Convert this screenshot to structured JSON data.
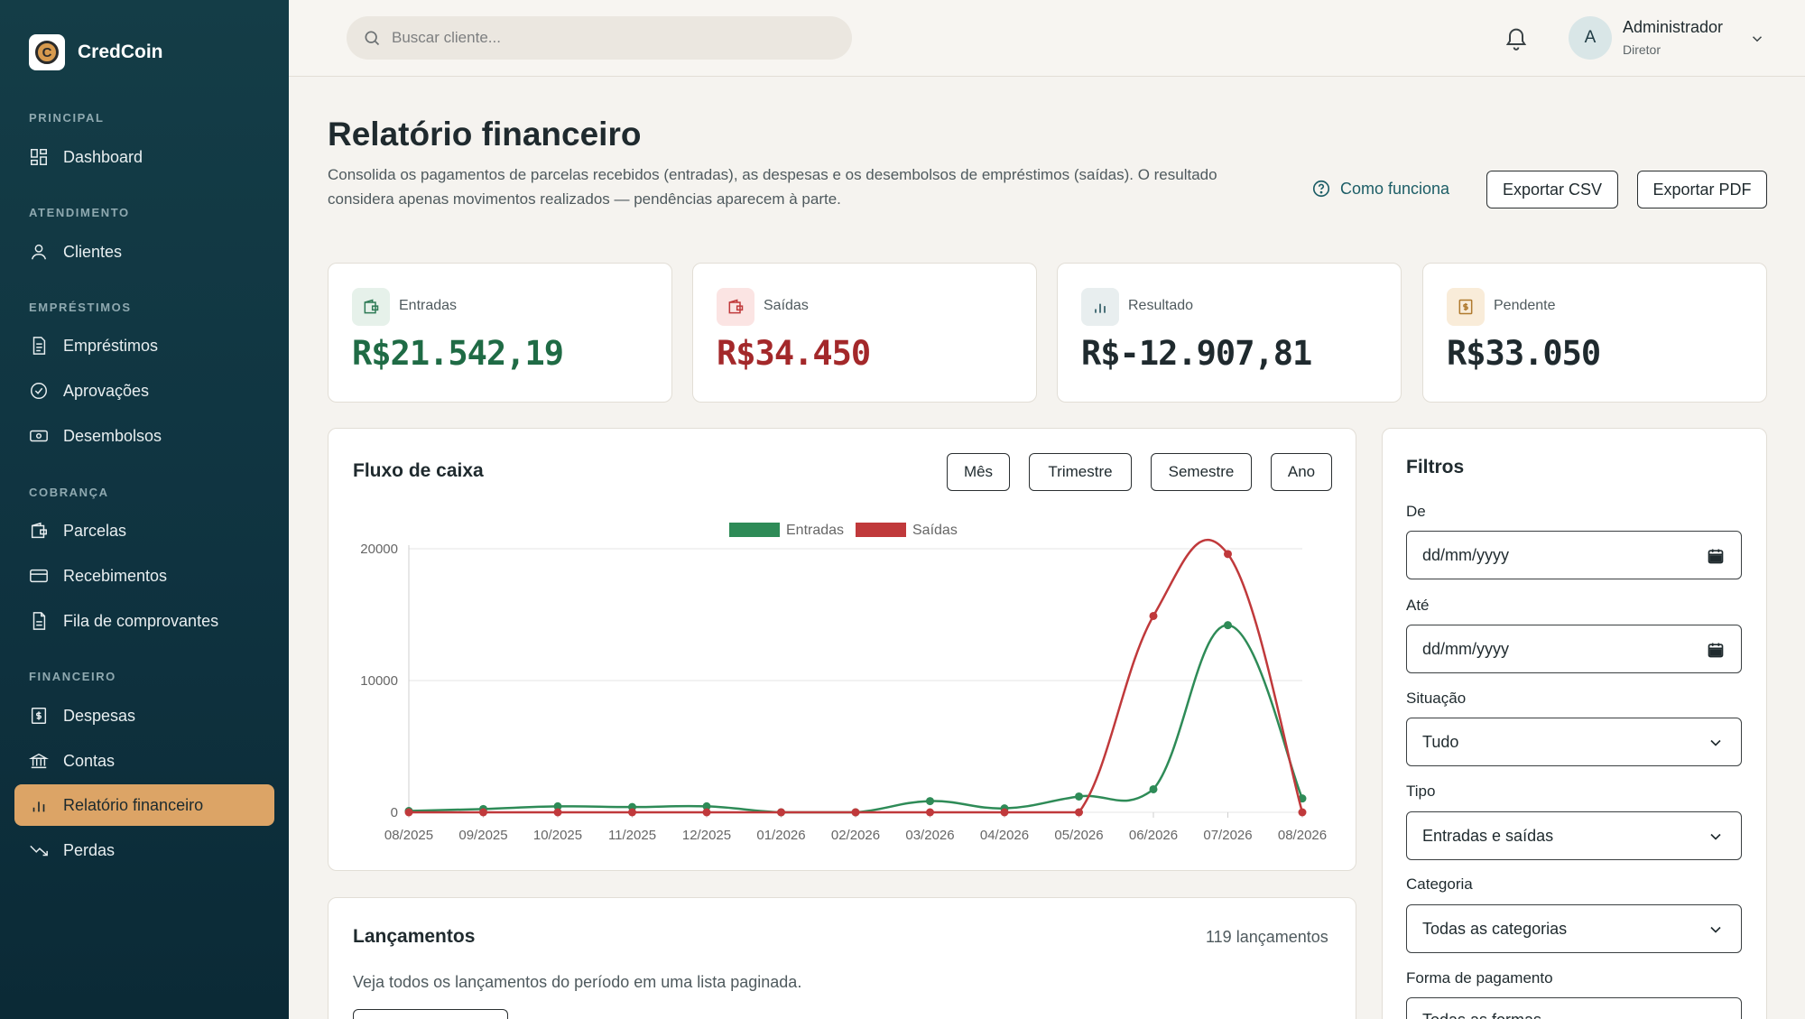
{
  "brand": {
    "name": "CredCoin",
    "logo_letter": "C"
  },
  "sidebar": {
    "sections": [
      {
        "label": "PRINCIPAL",
        "items": [
          {
            "label": "Dashboard",
            "icon": "grid-icon"
          }
        ]
      },
      {
        "label": "ATENDIMENTO",
        "items": [
          {
            "label": "Clientes",
            "icon": "user-icon"
          }
        ]
      },
      {
        "label": "EMPRÉSTIMOS",
        "items": [
          {
            "label": "Empréstimos",
            "icon": "document-icon"
          },
          {
            "label": "Aprovações",
            "icon": "check-circle-icon"
          },
          {
            "label": "Desembolsos",
            "icon": "banknote-icon"
          }
        ]
      },
      {
        "label": "COBRANÇA",
        "items": [
          {
            "label": "Parcelas",
            "icon": "wallet-icon"
          },
          {
            "label": "Recebimentos",
            "icon": "card-icon"
          },
          {
            "label": "Fila de comprovantes",
            "icon": "file-icon"
          }
        ]
      },
      {
        "label": "FINANCEIRO",
        "items": [
          {
            "label": "Despesas",
            "icon": "receipt-icon"
          },
          {
            "label": "Contas",
            "icon": "bank-icon"
          },
          {
            "label": "Relatório financeiro",
            "icon": "bar-chart-icon",
            "active": true
          },
          {
            "label": "Perdas",
            "icon": "trending-down-icon"
          }
        ]
      }
    ]
  },
  "topbar": {
    "search_placeholder": "Buscar cliente...",
    "user": {
      "initial": "A",
      "name": "Administrador",
      "role": "Diretor"
    }
  },
  "page": {
    "title": "Relatório financeiro",
    "description": "Consolida os pagamentos de parcelas recebidos (entradas), as despesas e os desembolsos de empréstimos (saídas). O resultado considera apenas movimentos realizados — pendências aparecem à parte.",
    "how_it_works": "Como funciona",
    "export_csv": "Exportar CSV",
    "export_pdf": "Exportar PDF"
  },
  "kpis": [
    {
      "label": "Entradas",
      "value": "R$21.542,19",
      "color": "#1f6b45",
      "icon": "wallet-icon",
      "icon_bg": "#e6f1ea",
      "icon_color": "#2d7a55"
    },
    {
      "label": "Saídas",
      "value": "R$34.450",
      "color": "#a3282a",
      "icon": "wallet-icon",
      "icon_bg": "#fbe4e3",
      "icon_color": "#c0393b"
    },
    {
      "label": "Resultado",
      "value": "R$-12.907,81",
      "color": "#1f2a2e",
      "icon": "bar-chart-icon",
      "icon_bg": "#e8eeef",
      "icon_color": "#2d5a63"
    },
    {
      "label": "Pendente",
      "value": "R$33.050",
      "color": "#1f2a2e",
      "icon": "receipt-icon",
      "icon_bg": "#f9ecd9",
      "icon_color": "#b07a2e"
    }
  ],
  "cashflow": {
    "title": "Fluxo de caixa",
    "periods": [
      "Mês",
      "Trimestre",
      "Semestre",
      "Ano"
    ]
  },
  "chart_data": {
    "type": "line",
    "title": "",
    "x": [
      "08/2025",
      "09/2025",
      "10/2025",
      "11/2025",
      "12/2025",
      "01/2026",
      "02/2026",
      "03/2026",
      "04/2026",
      "05/2026",
      "06/2026",
      "07/2026",
      "08/2026"
    ],
    "series": [
      {
        "name": "Entradas",
        "color": "#2e8b57",
        "values": [
          100,
          250,
          450,
          400,
          450,
          0,
          0,
          850,
          300,
          1200,
          1750,
          14200,
          1050
        ]
      },
      {
        "name": "Saídas",
        "color": "#c0393b",
        "values": [
          0,
          0,
          0,
          0,
          0,
          0,
          0,
          0,
          0,
          0,
          14900,
          19600,
          0
        ]
      }
    ],
    "y_ticks": [
      0,
      10000,
      20000
    ],
    "ylim": [
      0,
      20000
    ],
    "legend": "top-center",
    "grid": true
  },
  "lancamentos": {
    "title": "Lançamentos",
    "count": "119 lançamentos",
    "description": "Veja todos os lançamentos do período em uma lista paginada."
  },
  "filters": {
    "title": "Filtros",
    "from_label": "De",
    "from_value": "dd/mm/yyyy",
    "to_label": "Até",
    "to_value": "dd/mm/yyyy",
    "status_label": "Situação",
    "status_value": "Tudo",
    "type_label": "Tipo",
    "type_value": "Entradas e saídas",
    "category_label": "Categoria",
    "category_value": "Todas as categorias",
    "payment_label": "Forma de pagamento",
    "payment_value": "Todas as formas"
  }
}
